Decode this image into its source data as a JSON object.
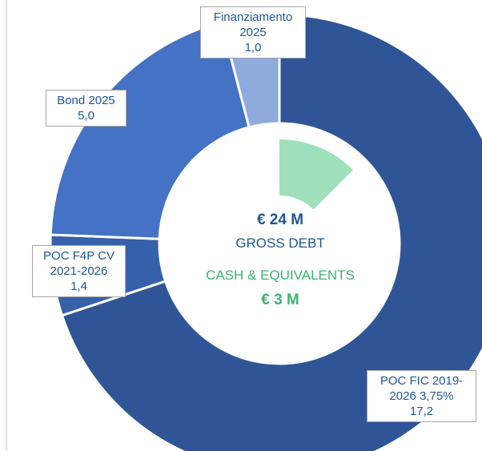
{
  "chart_data": {
    "type": "donut",
    "categories": [
      "POC FIC 2019-2026 3,75%",
      "POC F4P CV 2021-2026",
      "Bond 2025",
      "Finanziamento 2025"
    ],
    "values": [
      17.2,
      1.4,
      5.0,
      1.0
    ],
    "value_labels": [
      "17,2",
      "1,4",
      "5,0",
      "1,0"
    ],
    "colors": [
      "#2f5597",
      "#3760ab",
      "#4472c4",
      "#8faadc"
    ],
    "gross": {
      "label": "GROSS DEBT",
      "value": 24,
      "value_label": "€ 24 M",
      "color": "#1f5597"
    },
    "cash": {
      "label": "CASH & EQUIVALENTS",
      "value": 3,
      "value_label": "€ 3 M",
      "color": "#3cb371",
      "wedge_color": "#9ee0bb"
    }
  }
}
